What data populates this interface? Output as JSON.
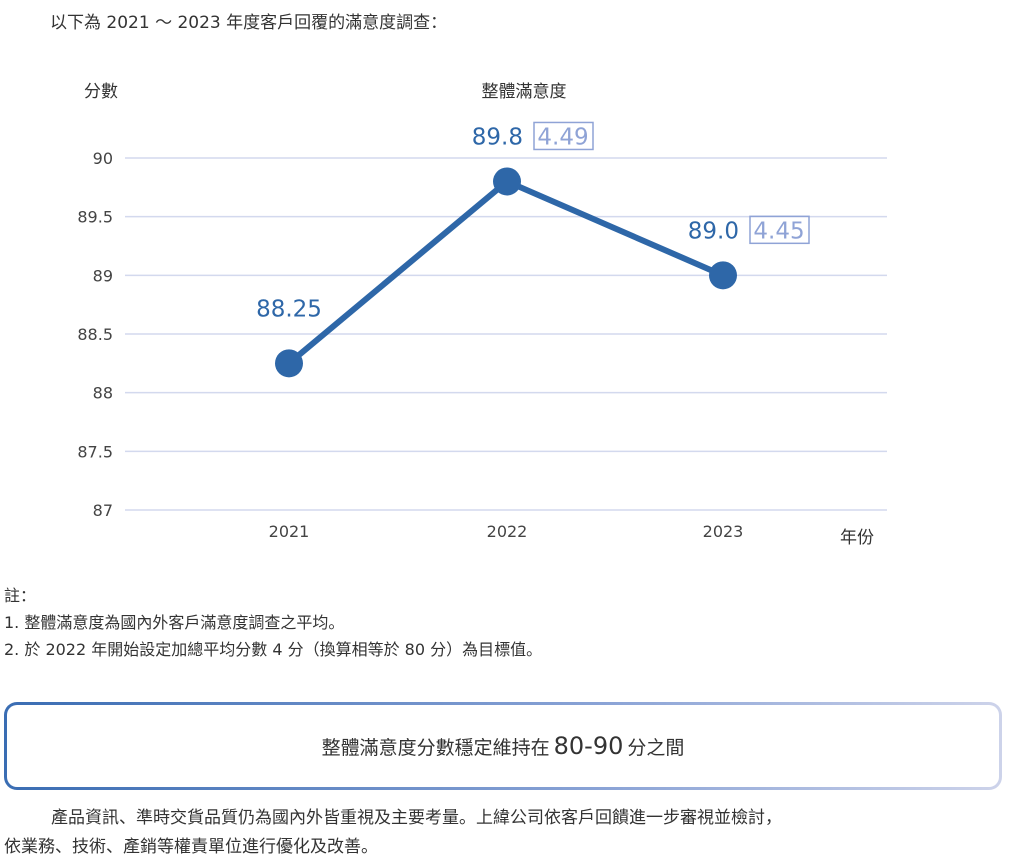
{
  "intro": "以下為 2021 ～ 2023 年度客戶回覆的滿意度調查：",
  "chart_data": {
    "type": "line",
    "title": "整體滿意度",
    "ylabel": "分數",
    "xlabel": "年份",
    "categories": [
      "2021",
      "2022",
      "2023"
    ],
    "series": [
      {
        "name": "整體滿意度",
        "values": [
          88.25,
          89.8,
          89.0
        ],
        "color": "#2e67a8"
      }
    ],
    "data_labels": [
      "88.25",
      "89.8",
      "89.0"
    ],
    "secondary_labels": [
      "",
      "4.49",
      "4.45"
    ],
    "ylim": [
      87,
      90
    ],
    "yticks": [
      "87",
      "87.5",
      "88",
      "88.5",
      "89",
      "89.5",
      "90"
    ],
    "grid": true,
    "colors": {
      "grid": "#d3d9ee",
      "label": "#2e67a8",
      "secondary": "#8fa3d6"
    }
  },
  "notes": {
    "title": "註：",
    "items": [
      "1. 整體滿意度為國內外客戶滿意度調查之平均。",
      "2. 於 2022 年開始設定加總平均分數 4 分（換算相等於 80 分）為目標值。"
    ]
  },
  "highlight": {
    "prefix": "整體滿意度分數穩定維持在",
    "number": "80-90",
    "suffix": "分之間"
  },
  "paragraph": {
    "line1": "產品資訊、準時交貨品質仍為國內外皆重視及主要考量。上緯公司依客戶回饋進一步審視並檢討，",
    "line2": "依業務、技術、產銷等權責單位進行優化及改善。"
  }
}
